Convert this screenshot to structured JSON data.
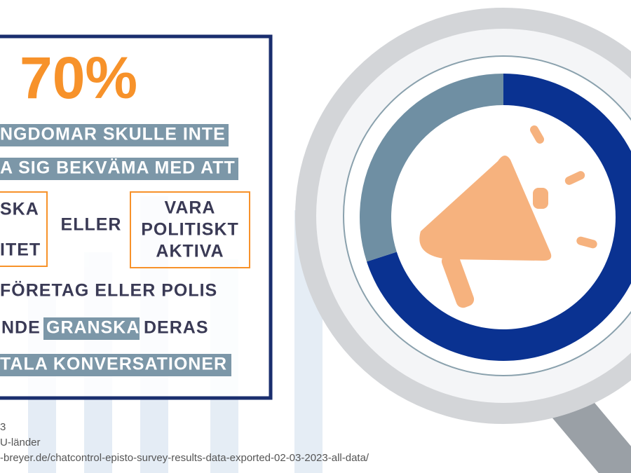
{
  "headline": "70%",
  "lines": [
    "NGDOMAR SKULLE INTE",
    "A SIG BEKVÄMA MED ATT"
  ],
  "options": {
    "left": [
      "SKA",
      "ITET"
    ],
    "middle": "ELLER",
    "right": [
      "VARA",
      "POLITISKT",
      "AKTIVA"
    ]
  },
  "line_after": "FÖRETAG ELLER POLIS",
  "line_mixed": [
    "NDE",
    "GRANSKA",
    "DERAS"
  ],
  "line_last": "TALA KONVERSATIONER",
  "source": [
    "3",
    "U-länder",
    "-breyer.de/chatcontrol-episto-survey-results-data-exported-02-03-2023-all-data/"
  ],
  "chart_data": {
    "type": "pie",
    "values": [
      70,
      30
    ],
    "colors": [
      "#0a3291",
      "#6f8fa3"
    ]
  }
}
